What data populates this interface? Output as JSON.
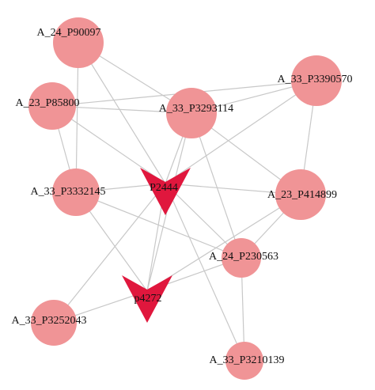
{
  "nodes": [
    {
      "label": "A_24_P90097"
    },
    {
      "label": "A_23_P85800"
    },
    {
      "label": "A_33_P3293114"
    },
    {
      "label": "A_33_P3390570"
    },
    {
      "label": "A_33_P3332145"
    },
    {
      "label": "P2444"
    },
    {
      "label": "A_23_P414899"
    },
    {
      "label": "A_24_P230563"
    },
    {
      "label": "p4272"
    },
    {
      "label": "A_33_P3252043"
    },
    {
      "label": "A_33_P3210139"
    }
  ]
}
